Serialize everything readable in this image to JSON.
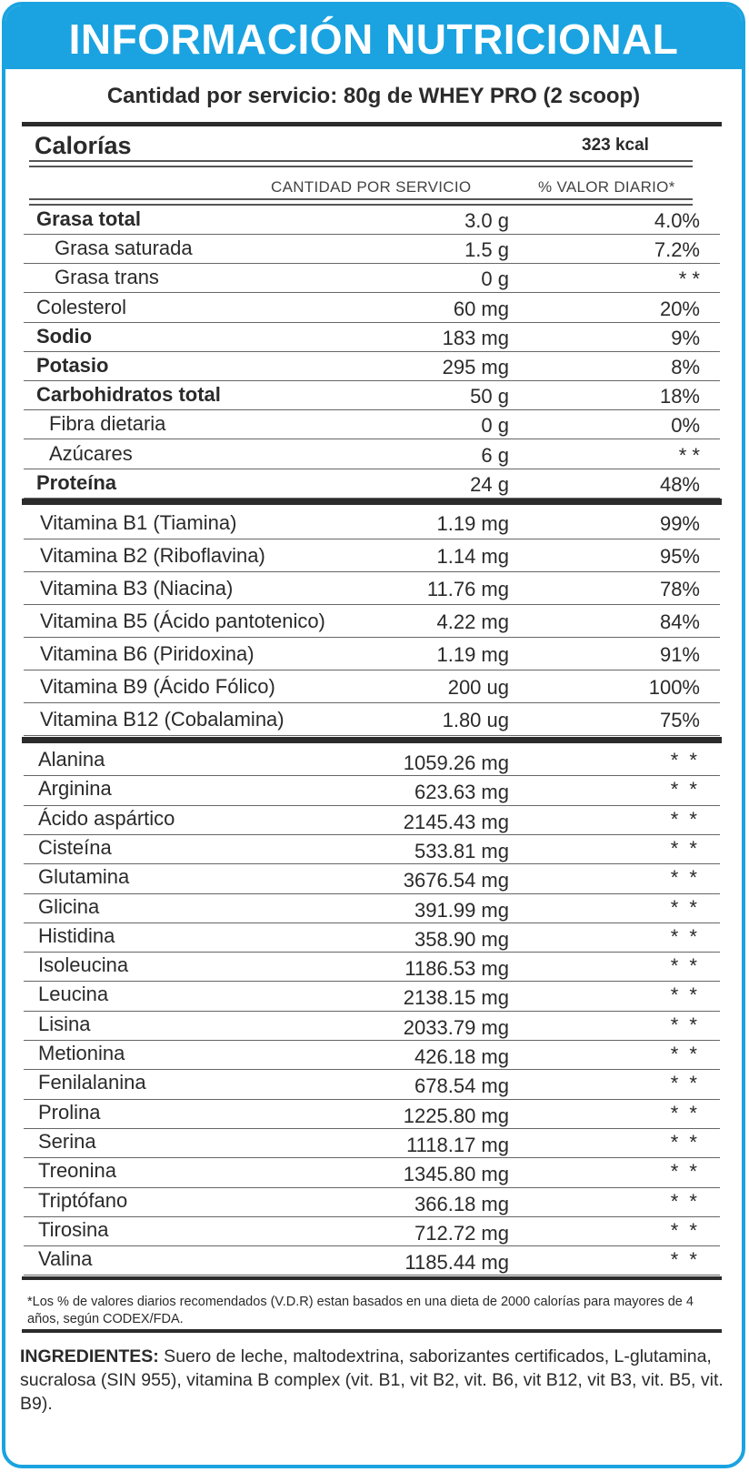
{
  "header": {
    "title": "INFORMACIÓN NUTRICIONAL",
    "serving": "Cantidad por servicio: 80g de WHEY PRO (2 scoop)"
  },
  "calories": {
    "label": "Calorías",
    "value": "323 kcal"
  },
  "columns": {
    "quantity": "CANTIDAD POR SERVICIO",
    "daily_value": "% VALOR DIARIO*"
  },
  "nutrients": [
    {
      "name": "Grasa total",
      "qty": "3.0 g",
      "dv": "4.0%"
    },
    {
      "name": "Grasa saturada",
      "qty": "1.5 g",
      "dv": "7.2%"
    },
    {
      "name": "Grasa trans",
      "qty": "0 g",
      "dv": "* *"
    },
    {
      "name": "Colesterol",
      "qty": "60 mg",
      "dv": "20%"
    },
    {
      "name": "Sodio",
      "qty": "183 mg",
      "dv": "9%"
    },
    {
      "name": "Potasio",
      "qty": "295 mg",
      "dv": "8%"
    },
    {
      "name": "Carbohidratos total",
      "qty": "50 g",
      "dv": "18%"
    },
    {
      "name": "Fibra dietaria",
      "qty": "0 g",
      "dv": "0%"
    },
    {
      "name": "Azúcares",
      "qty": "6 g",
      "dv": "* *"
    },
    {
      "name": "Proteína",
      "qty": "24 g",
      "dv": "48%"
    }
  ],
  "vitamins": [
    {
      "name": "Vitamina B1 (Tiamina)",
      "qty": "1.19 mg",
      "dv": "99%"
    },
    {
      "name": "Vitamina B2 (Riboflavina)",
      "qty": "1.14 mg",
      "dv": "95%"
    },
    {
      "name": "Vitamina B3 (Niacina)",
      "qty": "11.76 mg",
      "dv": "78%"
    },
    {
      "name": "Vitamina B5 (Ácido pantotenico)",
      "qty": "4.22 mg",
      "dv": "84%"
    },
    {
      "name": "Vitamina B6 (Piridoxina)",
      "qty": "1.19 mg",
      "dv": "91%"
    },
    {
      "name": "Vitamina B9 (Ácido Fólico)",
      "qty": "200 ug",
      "dv": "100%"
    },
    {
      "name": "Vitamina B12 (Cobalamina)",
      "qty": "1.80 ug",
      "dv": "75%"
    }
  ],
  "amino_acids": [
    {
      "name": "Alanina",
      "qty": "1059.26 mg",
      "dv": "* *"
    },
    {
      "name": "Arginina",
      "qty": "623.63 mg",
      "dv": "* *"
    },
    {
      "name": "Ácido aspártico",
      "qty": "2145.43 mg",
      "dv": "* *"
    },
    {
      "name": "Cisteína",
      "qty": "533.81 mg",
      "dv": "* *"
    },
    {
      "name": "Glutamina",
      "qty": "3676.54 mg",
      "dv": "* *"
    },
    {
      "name": "Glicina",
      "qty": "391.99 mg",
      "dv": "* *"
    },
    {
      "name": "Histidina",
      "qty": "358.90 mg",
      "dv": "* *"
    },
    {
      "name": "Isoleucina",
      "qty": "1186.53 mg",
      "dv": "* *"
    },
    {
      "name": "Leucina",
      "qty": "2138.15 mg",
      "dv": "* *"
    },
    {
      "name": "Lisina",
      "qty": "2033.79 mg",
      "dv": "* *"
    },
    {
      "name": "Metionina",
      "qty": "426.18 mg",
      "dv": "* *"
    },
    {
      "name": "Fenilalanina",
      "qty": "678.54 mg",
      "dv": "* *"
    },
    {
      "name": "Prolina",
      "qty": "1225.80 mg",
      "dv": "* *"
    },
    {
      "name": "Serina",
      "qty": "1118.17 mg",
      "dv": "* *"
    },
    {
      "name": "Treonina",
      "qty": "1345.80 mg",
      "dv": "* *"
    },
    {
      "name": "Triptófano",
      "qty": "366.18 mg",
      "dv": "* *"
    },
    {
      "name": "Tirosina",
      "qty": "712.72 mg",
      "dv": "* *"
    },
    {
      "name": "Valina",
      "qty": "1185.44 mg",
      "dv": "* *"
    }
  ],
  "footnote": "*Los % de valores diarios recomendados (V.D.R) estan basados en una dieta de 2000 calorías para mayores de 4 años, según CODEX/FDA.",
  "ingredients": {
    "label": "INGREDIENTES:",
    "text": " Suero de leche, maltodextrina, saborizantes certificados, L-glutamina, sucralosa (SIN 955), vitamina B complex (vit. B1, vit B2, vit. B6, vit B12, vit B3, vit. B5, vit. B9)."
  },
  "colors": {
    "accent": "#1aa3e0",
    "text": "#2a2a2a"
  }
}
